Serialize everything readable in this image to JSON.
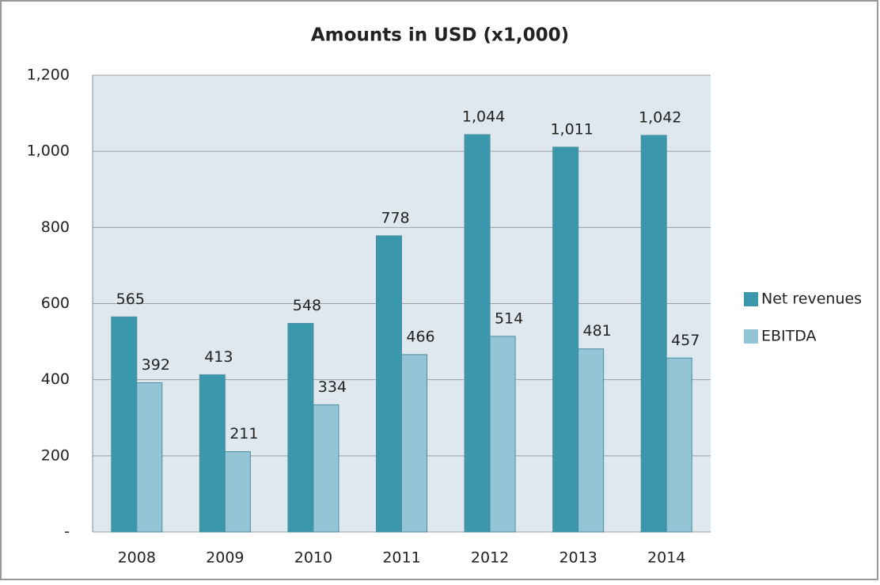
{
  "chart_data": {
    "type": "bar",
    "title": "Amounts in USD (x1,000)",
    "categories": [
      "2008",
      "2009",
      "2010",
      "2011",
      "2012",
      "2013",
      "2014"
    ],
    "series": [
      {
        "name": "Net revenues",
        "color": "#3b97ab",
        "values": [
          565,
          413,
          548,
          778,
          1044,
          1011,
          1042
        ],
        "value_labels": [
          "565",
          "413",
          "548",
          "778",
          "1,044",
          "1,011",
          "1,042"
        ]
      },
      {
        "name": "EBITDA",
        "color": "#93c5d7",
        "values": [
          392,
          211,
          334,
          466,
          514,
          481,
          457
        ]
      }
    ],
    "ylim": [
      0,
      1200
    ],
    "yticks": [
      {
        "value": 0,
        "label": "-"
      },
      200,
      400,
      600,
      800,
      {
        "value": 1000,
        "label": "1,000"
      },
      {
        "value": 1200,
        "label": "1,200"
      }
    ],
    "grid": true,
    "legend": "right"
  }
}
